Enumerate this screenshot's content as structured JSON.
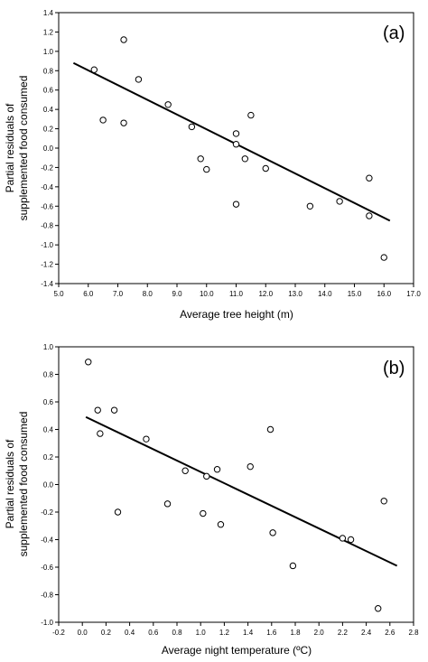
{
  "chart_data": [
    {
      "type": "scatter",
      "panel_label": "(a)",
      "xlabel": "Average tree height (m)",
      "ylabel": [
        "Partial residuals of",
        "supplemented food consumed"
      ],
      "xlim": [
        5.0,
        17.0
      ],
      "ylim": [
        -1.4,
        1.4
      ],
      "x_ticks": [
        5.0,
        6.0,
        7.0,
        8.0,
        9.0,
        10.0,
        11.0,
        12.0,
        13.0,
        14.0,
        15.0,
        16.0,
        17.0
      ],
      "x_tick_labels": [
        "5.0",
        "6.0",
        "7.0",
        "8.0",
        "9.0",
        "10.0",
        "11.0",
        "12.0",
        "13.0",
        "14.0",
        "15.0",
        "16.0",
        "17.0"
      ],
      "y_ticks": [
        -1.4,
        -1.2,
        -1.0,
        -0.8,
        -0.6,
        -0.4,
        -0.2,
        0.0,
        0.2,
        0.4,
        0.6,
        0.8,
        1.0,
        1.2,
        1.4
      ],
      "y_tick_labels": [
        "-1.4",
        "-1.2",
        "-1.0",
        "-0.8",
        "-0.6",
        "-0.4",
        "-0.2",
        "0.0",
        "0.2",
        "0.4",
        "0.6",
        "0.8",
        "1.0",
        "1.2",
        "1.4"
      ],
      "points": [
        {
          "x": 6.2,
          "y": 0.81
        },
        {
          "x": 6.5,
          "y": 0.29
        },
        {
          "x": 7.2,
          "y": 1.12
        },
        {
          "x": 7.2,
          "y": 0.26
        },
        {
          "x": 7.7,
          "y": 0.71
        },
        {
          "x": 8.7,
          "y": 0.45
        },
        {
          "x": 9.5,
          "y": 0.22
        },
        {
          "x": 9.8,
          "y": -0.11
        },
        {
          "x": 10.0,
          "y": -0.22
        },
        {
          "x": 11.0,
          "y": 0.15
        },
        {
          "x": 11.0,
          "y": 0.04
        },
        {
          "x": 11.0,
          "y": -0.58
        },
        {
          "x": 11.3,
          "y": -0.11
        },
        {
          "x": 11.5,
          "y": 0.34
        },
        {
          "x": 12.0,
          "y": -0.21
        },
        {
          "x": 13.5,
          "y": -0.6
        },
        {
          "x": 14.5,
          "y": -0.55
        },
        {
          "x": 15.5,
          "y": -0.31
        },
        {
          "x": 15.5,
          "y": -0.7
        },
        {
          "x": 16.0,
          "y": -1.13
        }
      ],
      "fit_line": {
        "x": [
          5.5,
          16.2
        ],
        "y": [
          0.88,
          -0.75
        ]
      },
      "grid": false,
      "legend": "none"
    },
    {
      "type": "scatter",
      "panel_label": "(b)",
      "xlabel": "Average night temperature (ºC)",
      "ylabel": [
        "Partial residuals of",
        "supplemented food consumed"
      ],
      "xlim": [
        -0.2,
        2.8
      ],
      "ylim": [
        -1.0,
        1.0
      ],
      "x_ticks": [
        -0.2,
        0.0,
        0.2,
        0.4,
        0.6,
        0.8,
        1.0,
        1.2,
        1.4,
        1.6,
        1.8,
        2.0,
        2.2,
        2.4,
        2.6,
        2.8
      ],
      "x_tick_labels": [
        "-0.2",
        "0.0",
        "0.2",
        "0.4",
        "0.6",
        "0.8",
        "1.0",
        "1.2",
        "1.4",
        "1.6",
        "1.8",
        "2.0",
        "2.2",
        "2.4",
        "2.6",
        "2.8"
      ],
      "y_ticks": [
        -1.0,
        -0.8,
        -0.6,
        -0.4,
        -0.2,
        0.0,
        0.2,
        0.4,
        0.6,
        0.8,
        1.0
      ],
      "y_tick_labels": [
        "-1.0",
        "-0.8",
        "-0.6",
        "-0.4",
        "-0.2",
        "0.0",
        "0.2",
        "0.4",
        "0.6",
        "0.8",
        "1.0"
      ],
      "points": [
        {
          "x": 0.05,
          "y": 0.89
        },
        {
          "x": 0.13,
          "y": 0.54
        },
        {
          "x": 0.15,
          "y": 0.37
        },
        {
          "x": 0.27,
          "y": 0.54
        },
        {
          "x": 0.3,
          "y": -0.2
        },
        {
          "x": 0.54,
          "y": 0.33
        },
        {
          "x": 0.72,
          "y": -0.14
        },
        {
          "x": 0.87,
          "y": 0.1
        },
        {
          "x": 1.02,
          "y": -0.21
        },
        {
          "x": 1.05,
          "y": 0.06
        },
        {
          "x": 1.14,
          "y": 0.11
        },
        {
          "x": 1.17,
          "y": -0.29
        },
        {
          "x": 1.42,
          "y": 0.13
        },
        {
          "x": 1.59,
          "y": 0.4
        },
        {
          "x": 1.61,
          "y": -0.35
        },
        {
          "x": 1.78,
          "y": -0.59
        },
        {
          "x": 2.2,
          "y": -0.39
        },
        {
          "x": 2.27,
          "y": -0.4
        },
        {
          "x": 2.5,
          "y": -0.9
        },
        {
          "x": 2.55,
          "y": -0.12
        }
      ],
      "fit_line": {
        "x": [
          0.03,
          2.66
        ],
        "y": [
          0.49,
          -0.59
        ]
      },
      "grid": false,
      "legend": "none"
    }
  ]
}
